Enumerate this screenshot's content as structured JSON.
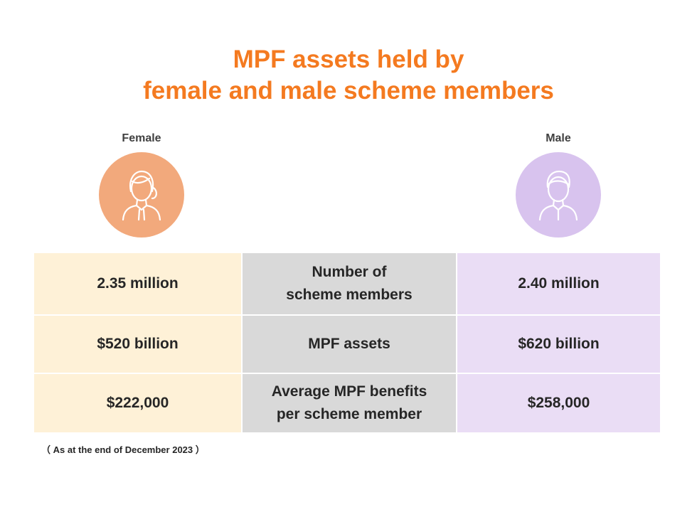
{
  "title": {
    "line1": "MPF assets held by",
    "line2": "female and male scheme members"
  },
  "female": {
    "label": "Female",
    "icon": "female-avatar-icon",
    "color": "#F2A97C"
  },
  "male": {
    "label": "Male",
    "icon": "male-avatar-icon",
    "color": "#D8C3EE"
  },
  "table": {
    "rows": [
      {
        "female": "2.35 million",
        "label_line1": "Number of",
        "label_line2": "scheme members",
        "male": "2.40 million"
      },
      {
        "female": "$520 billion",
        "label_line1": "MPF assets",
        "label_line2": "",
        "male": "$620 billion"
      },
      {
        "female": "$222,000",
        "label_line1": "Average MPF benefits",
        "label_line2": "per scheme member",
        "male": "$258,000"
      }
    ]
  },
  "note": "（ As at the end of December 2023 ）",
  "colors": {
    "title": "#F47A20",
    "female_cell": "#FEF1D7",
    "male_cell": "#EADDF5",
    "center_cell": "#D9D9D9"
  }
}
